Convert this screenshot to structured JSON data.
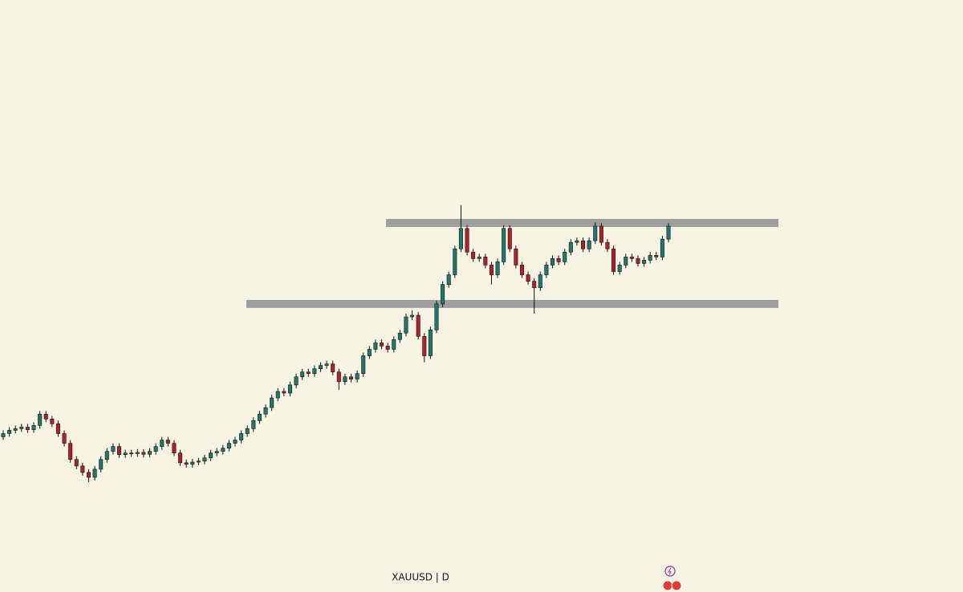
{
  "chart_data": {
    "type": "candlestick",
    "title": "XAUUSD | D",
    "up_color": "#1f7a6e",
    "down_color": "#b3202c",
    "level_color": "#9e9e9e",
    "ylim": [
      2311,
      4138
    ],
    "levels": [
      3450,
      3200
    ],
    "candles": [
      [
        2790,
        2810,
        2780,
        2800
      ],
      [
        2800,
        2820,
        2790,
        2810
      ],
      [
        2810,
        2825,
        2800,
        2815
      ],
      [
        2815,
        2830,
        2805,
        2820
      ],
      [
        2820,
        2830,
        2802,
        2812
      ],
      [
        2812,
        2835,
        2802,
        2825
      ],
      [
        2825,
        2870,
        2815,
        2860
      ],
      [
        2860,
        2870,
        2835,
        2845
      ],
      [
        2845,
        2855,
        2820,
        2830
      ],
      [
        2830,
        2840,
        2790,
        2800
      ],
      [
        2800,
        2810,
        2760,
        2770
      ],
      [
        2770,
        2780,
        2710,
        2720
      ],
      [
        2720,
        2730,
        2690,
        2700
      ],
      [
        2700,
        2710,
        2670,
        2680
      ],
      [
        2680,
        2690,
        2650,
        2665
      ],
      [
        2665,
        2700,
        2655,
        2690
      ],
      [
        2690,
        2730,
        2680,
        2720
      ],
      [
        2720,
        2755,
        2710,
        2745
      ],
      [
        2745,
        2770,
        2735,
        2760
      ],
      [
        2760,
        2770,
        2725,
        2735
      ],
      [
        2735,
        2750,
        2725,
        2740
      ],
      [
        2740,
        2750,
        2728,
        2738
      ],
      [
        2738,
        2752,
        2728,
        2742
      ],
      [
        2742,
        2752,
        2726,
        2736
      ],
      [
        2736,
        2755,
        2726,
        2745
      ],
      [
        2745,
        2770,
        2735,
        2760
      ],
      [
        2760,
        2790,
        2750,
        2780
      ],
      [
        2780,
        2790,
        2760,
        2770
      ],
      [
        2770,
        2780,
        2730,
        2740
      ],
      [
        2740,
        2750,
        2700,
        2710
      ],
      [
        2710,
        2720,
        2695,
        2705
      ],
      [
        2705,
        2722,
        2695,
        2712
      ],
      [
        2712,
        2725,
        2702,
        2715
      ],
      [
        2715,
        2735,
        2705,
        2725
      ],
      [
        2725,
        2750,
        2715,
        2740
      ],
      [
        2740,
        2755,
        2730,
        2745
      ],
      [
        2745,
        2765,
        2735,
        2755
      ],
      [
        2755,
        2780,
        2745,
        2770
      ],
      [
        2770,
        2790,
        2760,
        2780
      ],
      [
        2780,
        2810,
        2770,
        2800
      ],
      [
        2800,
        2825,
        2790,
        2815
      ],
      [
        2815,
        2850,
        2805,
        2840
      ],
      [
        2840,
        2870,
        2830,
        2860
      ],
      [
        2860,
        2890,
        2850,
        2880
      ],
      [
        2880,
        2920,
        2870,
        2910
      ],
      [
        2910,
        2940,
        2900,
        2930
      ],
      [
        2930,
        2940,
        2915,
        2925
      ],
      [
        2925,
        2960,
        2915,
        2950
      ],
      [
        2950,
        2985,
        2940,
        2975
      ],
      [
        2975,
        3000,
        2965,
        2990
      ],
      [
        2990,
        3000,
        2975,
        2985
      ],
      [
        2985,
        3010,
        2975,
        3000
      ],
      [
        3000,
        3020,
        2990,
        3010
      ],
      [
        3010,
        3025,
        3000,
        3015
      ],
      [
        3015,
        3025,
        2980,
        2990
      ],
      [
        2990,
        3000,
        2935,
        2960
      ],
      [
        2960,
        2985,
        2950,
        2975
      ],
      [
        2975,
        2985,
        2958,
        2968
      ],
      [
        2968,
        2995,
        2958,
        2985
      ],
      [
        2985,
        3050,
        2975,
        3040
      ],
      [
        3040,
        3070,
        3030,
        3060
      ],
      [
        3060,
        3090,
        3050,
        3080
      ],
      [
        3080,
        3090,
        3060,
        3070
      ],
      [
        3070,
        3080,
        3050,
        3060
      ],
      [
        3060,
        3100,
        3050,
        3090
      ],
      [
        3090,
        3120,
        3080,
        3110
      ],
      [
        3110,
        3170,
        3100,
        3160
      ],
      [
        3160,
        3180,
        3150,
        3165
      ],
      [
        3165,
        3175,
        3090,
        3100
      ],
      [
        3100,
        3110,
        3020,
        3040
      ],
      [
        3040,
        3130,
        3030,
        3120
      ],
      [
        3120,
        3210,
        3110,
        3200
      ],
      [
        3200,
        3270,
        3190,
        3260
      ],
      [
        3260,
        3300,
        3250,
        3290
      ],
      [
        3290,
        3380,
        3280,
        3370
      ],
      [
        3370,
        3505,
        3360,
        3433
      ],
      [
        3433,
        3443,
        3350,
        3360
      ],
      [
        3360,
        3370,
        3330,
        3340
      ],
      [
        3340,
        3355,
        3330,
        3345
      ],
      [
        3345,
        3355,
        3310,
        3320
      ],
      [
        3320,
        3330,
        3260,
        3290
      ],
      [
        3290,
        3340,
        3280,
        3330
      ],
      [
        3330,
        3443,
        3320,
        3433
      ],
      [
        3433,
        3443,
        3360,
        3370
      ],
      [
        3370,
        3380,
        3310,
        3320
      ],
      [
        3320,
        3330,
        3280,
        3290
      ],
      [
        3290,
        3300,
        3260,
        3270
      ],
      [
        3270,
        3280,
        3170,
        3250
      ],
      [
        3250,
        3300,
        3240,
        3290
      ],
      [
        3290,
        3330,
        3280,
        3320
      ],
      [
        3320,
        3350,
        3310,
        3340
      ],
      [
        3340,
        3350,
        3320,
        3330
      ],
      [
        3330,
        3370,
        3320,
        3360
      ],
      [
        3360,
        3400,
        3350,
        3390
      ],
      [
        3390,
        3405,
        3380,
        3395
      ],
      [
        3395,
        3405,
        3360,
        3370
      ],
      [
        3370,
        3405,
        3360,
        3395
      ],
      [
        3395,
        3452,
        3385,
        3440
      ],
      [
        3440,
        3450,
        3380,
        3390
      ],
      [
        3390,
        3400,
        3360,
        3370
      ],
      [
        3370,
        3380,
        3290,
        3300
      ],
      [
        3300,
        3330,
        3290,
        3320
      ],
      [
        3320,
        3355,
        3310,
        3345
      ],
      [
        3345,
        3355,
        3330,
        3340
      ],
      [
        3340,
        3350,
        3315,
        3325
      ],
      [
        3325,
        3345,
        3315,
        3335
      ],
      [
        3335,
        3360,
        3325,
        3350
      ],
      [
        3350,
        3360,
        3335,
        3345
      ],
      [
        3345,
        3410,
        3335,
        3400
      ],
      [
        3400,
        3450,
        3390,
        3440
      ]
    ]
  }
}
